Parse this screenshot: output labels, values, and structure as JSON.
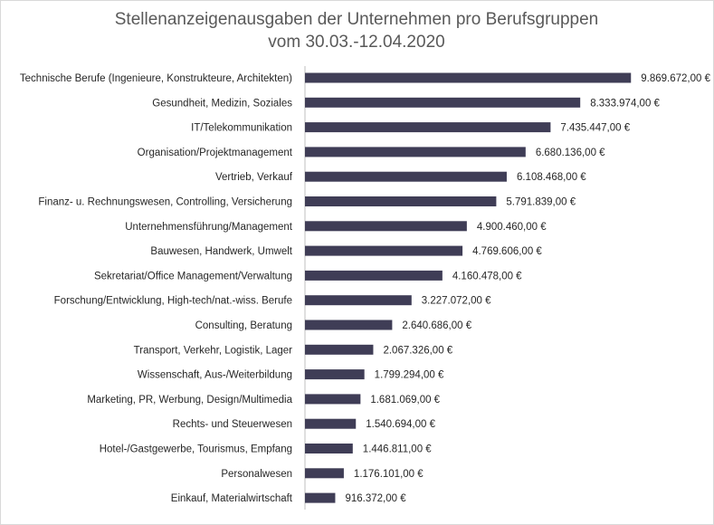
{
  "chart_data": {
    "type": "bar",
    "orientation": "horizontal",
    "title": [
      "Stellenanzeigenausgaben der Unternehmen pro Berufsgruppen",
      "vom 30.03.-12.04.2020"
    ],
    "categories": [
      "Technische Berufe (Ingenieure, Konstrukteure, Architekten)",
      "Gesundheit, Medizin, Soziales",
      "IT/Telekommunikation",
      "Organisation/Projektmanagement",
      "Vertrieb, Verkauf",
      "Finanz- u. Rechnungswesen, Controlling, Versicherung",
      "Unternehmensführung/Management",
      "Bauwesen, Handwerk, Umwelt",
      "Sekretariat/Office Management/Verwaltung",
      "Forschung/Entwicklung, High-tech/nat.-wiss. Berufe",
      "Consulting, Beratung",
      "Transport, Verkehr, Logistik, Lager",
      "Wissenschaft, Aus-/Weiterbildung",
      "Marketing, PR, Werbung, Design/Multimedia",
      "Rechts- und Steuerwesen",
      "Hotel-/Gastgewerbe, Tourismus, Empfang",
      "Personalwesen",
      "Einkauf, Materialwirtschaft"
    ],
    "values": [
      9869672,
      8333974,
      7435447,
      6680136,
      6108468,
      5791839,
      4900460,
      4769606,
      4160478,
      3227072,
      2640686,
      2067326,
      1799294,
      1681069,
      1540694,
      1446811,
      1176101,
      916372
    ],
    "value_labels": [
      "9.869.672,00 €",
      "8.333.974,00 €",
      "7.435.447,00 €",
      "6.680.136,00 €",
      "6.108.468,00 €",
      "5.791.839,00 €",
      "4.900.460,00 €",
      "4.769.606,00 €",
      "4.160.478,00 €",
      "3.227.072,00 €",
      "2.640.686,00 €",
      "2.067.326,00 €",
      "1.799.294,00 €",
      "1.681.069,00 €",
      "1.540.694,00 €",
      "1.446.811,00 €",
      "1.176.101,00 €",
      "916.372,00 €"
    ],
    "xlim": [
      0,
      10000000
    ],
    "grid": false,
    "bar_color": "#3f3d56",
    "legend": "none"
  }
}
